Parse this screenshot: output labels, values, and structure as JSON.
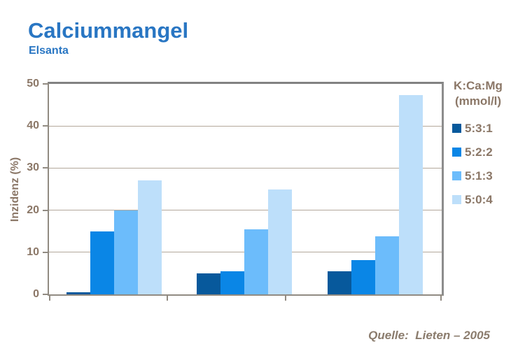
{
  "header": {
    "title": "Calciummangel",
    "subtitle": "Elsanta",
    "accent_color": "#2976C3"
  },
  "chart_data": {
    "type": "bar",
    "title": "Calciummangel – Elsanta",
    "ylabel": "Inzidenz (%)",
    "xlabel": "",
    "ylim": [
      0,
      50
    ],
    "yticks": [
      0,
      10,
      20,
      30,
      40,
      50
    ],
    "categories": [
      "",
      "",
      ""
    ],
    "grid": true,
    "legend_position": "right",
    "legend_title_line1": "K:Ca:Mg",
    "legend_title_line2": "(mmol/l)",
    "axis_text_color": "#8B7767",
    "series": [
      {
        "name": "5:3:1",
        "color": "#07599C",
        "values": [
          0.5,
          5.0,
          5.5
        ]
      },
      {
        "name": "5:2:2",
        "color": "#0A86E6",
        "values": [
          15.0,
          5.5,
          8.2
        ]
      },
      {
        "name": "5:1:3",
        "color": "#6CBCFB",
        "values": [
          20.0,
          15.5,
          13.8
        ]
      },
      {
        "name": "5:0:4",
        "color": "#BDDFFA",
        "values": [
          27.0,
          25.0,
          47.3
        ]
      }
    ]
  },
  "footer": {
    "source_label": "Quelle:",
    "source_value": "Lieten – 2005"
  }
}
